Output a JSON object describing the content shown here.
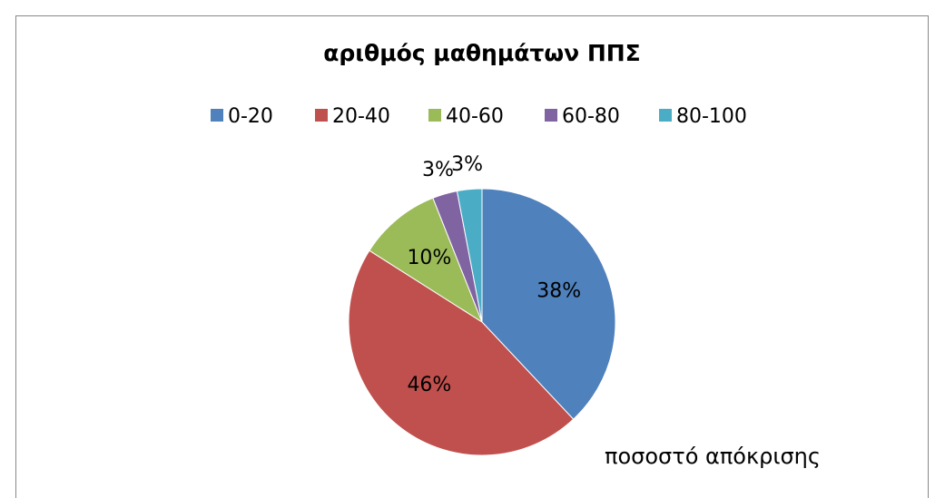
{
  "chart_data": {
    "type": "pie",
    "title": "αριθμός μαθημάτων ΠΠΣ",
    "annotation": "ποσοστό απόκρισης",
    "categories": [
      "0-20",
      "20-40",
      "40-60",
      "60-80",
      "80-100"
    ],
    "values": [
      38,
      46,
      10,
      3,
      3
    ],
    "value_labels": [
      "38%",
      "46%",
      "10%",
      "3%",
      "3%"
    ],
    "colors": [
      "#4f81bd",
      "#c0504d",
      "#9bbb59",
      "#8064a2",
      "#4bacc6"
    ],
    "legend": "top"
  }
}
